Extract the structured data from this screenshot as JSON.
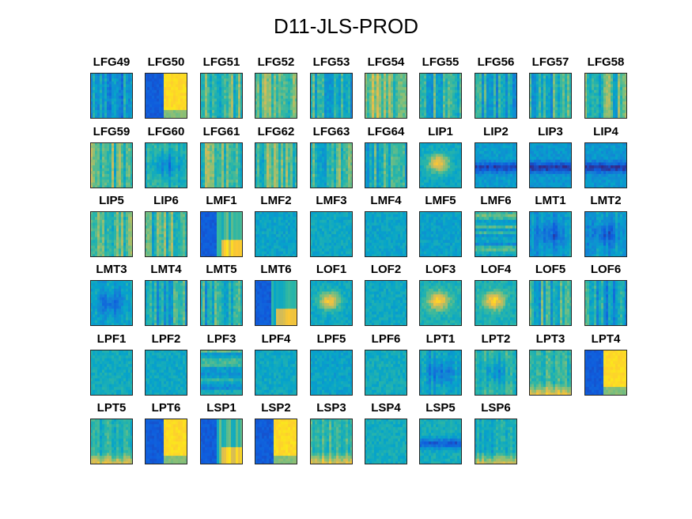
{
  "title": "D11-JLS-PROD",
  "chart_data": {
    "type": "heatmap",
    "title": "D11-JLS-PROD",
    "layout": "small multiples grid, 10 columns x 6 rows",
    "colormap": "parula",
    "colors": [
      "#352a87",
      "#0f5cdd",
      "#1481d6",
      "#06a4ca",
      "#2eb7a4",
      "#87bf77",
      "#d1bb59",
      "#fec832",
      "#f9fb0e"
    ],
    "panels": [
      {
        "label": "LFG49",
        "pattern": "vstripes",
        "level": 0.35
      },
      {
        "label": "LFG50",
        "pattern": "yellow-right",
        "level": 0.85
      },
      {
        "label": "LFG51",
        "pattern": "vstripes",
        "level": 0.5
      },
      {
        "label": "LFG52",
        "pattern": "vstripes",
        "level": 0.55
      },
      {
        "label": "LFG53",
        "pattern": "vstripes",
        "level": 0.42
      },
      {
        "label": "LFG54",
        "pattern": "vstripes",
        "level": 0.6
      },
      {
        "label": "LFG55",
        "pattern": "vstripes",
        "level": 0.45
      },
      {
        "label": "LFG56",
        "pattern": "vstripes",
        "level": 0.4
      },
      {
        "label": "LFG57",
        "pattern": "vstripes",
        "level": 0.45
      },
      {
        "label": "LFG58",
        "pattern": "vstripes",
        "level": 0.5
      },
      {
        "label": "LFG59",
        "pattern": "vstripes",
        "level": 0.55
      },
      {
        "label": "LFG60",
        "pattern": "patchy",
        "level": 0.45
      },
      {
        "label": "LFG61",
        "pattern": "vstripes",
        "level": 0.55
      },
      {
        "label": "LFG62",
        "pattern": "vstripes",
        "level": 0.55
      },
      {
        "label": "LFG63",
        "pattern": "vstripes",
        "level": 0.5
      },
      {
        "label": "LFG64",
        "pattern": "vstripes",
        "level": 0.45
      },
      {
        "label": "LIP1",
        "pattern": "blob",
        "level": 0.45
      },
      {
        "label": "LIP2",
        "pattern": "dark-band",
        "level": 0.3
      },
      {
        "label": "LIP3",
        "pattern": "dark-band",
        "level": 0.28
      },
      {
        "label": "LIP4",
        "pattern": "dark-band",
        "level": 0.28
      },
      {
        "label": "LIP5",
        "pattern": "vstripes",
        "level": 0.5
      },
      {
        "label": "LIP6",
        "pattern": "vstripes",
        "level": 0.5
      },
      {
        "label": "LMF1",
        "pattern": "dark-left",
        "level": 0.4
      },
      {
        "label": "LMF2",
        "pattern": "uniform",
        "level": 0.38
      },
      {
        "label": "LMF3",
        "pattern": "uniform",
        "level": 0.4
      },
      {
        "label": "LMF4",
        "pattern": "uniform",
        "level": 0.38
      },
      {
        "label": "LMF5",
        "pattern": "uniform",
        "level": 0.37
      },
      {
        "label": "LMF6",
        "pattern": "hstripes",
        "level": 0.45
      },
      {
        "label": "LMT1",
        "pattern": "patchy",
        "level": 0.35
      },
      {
        "label": "LMT2",
        "pattern": "patchy",
        "level": 0.35
      },
      {
        "label": "LMT3",
        "pattern": "patchy",
        "level": 0.4
      },
      {
        "label": "LMT4",
        "pattern": "vstripes",
        "level": 0.42
      },
      {
        "label": "LMT5",
        "pattern": "vstripes",
        "level": 0.45
      },
      {
        "label": "LMT6",
        "pattern": "dark-left",
        "level": 0.35
      },
      {
        "label": "LOF1",
        "pattern": "blob",
        "level": 0.45
      },
      {
        "label": "LOF2",
        "pattern": "uniform",
        "level": 0.4
      },
      {
        "label": "LOF3",
        "pattern": "blob",
        "level": 0.5
      },
      {
        "label": "LOF4",
        "pattern": "blob",
        "level": 0.5
      },
      {
        "label": "LOF5",
        "pattern": "vstripes",
        "level": 0.45
      },
      {
        "label": "LOF6",
        "pattern": "vstripes",
        "level": 0.4
      },
      {
        "label": "LPF1",
        "pattern": "uniform",
        "level": 0.42
      },
      {
        "label": "LPF2",
        "pattern": "uniform",
        "level": 0.4
      },
      {
        "label": "LPF3",
        "pattern": "hstripes",
        "level": 0.42
      },
      {
        "label": "LPF4",
        "pattern": "uniform",
        "level": 0.4
      },
      {
        "label": "LPF5",
        "pattern": "uniform",
        "level": 0.38
      },
      {
        "label": "LPF6",
        "pattern": "uniform",
        "level": 0.42
      },
      {
        "label": "LPT1",
        "pattern": "patchy",
        "level": 0.38
      },
      {
        "label": "LPT2",
        "pattern": "patchy",
        "level": 0.5
      },
      {
        "label": "LPT3",
        "pattern": "bottom-bright",
        "level": 0.5
      },
      {
        "label": "LPT4",
        "pattern": "yellow-right",
        "level": 0.55
      },
      {
        "label": "LPT5",
        "pattern": "bottom-bright",
        "level": 0.45
      },
      {
        "label": "LPT6",
        "pattern": "yellow-right",
        "level": 0.5
      },
      {
        "label": "LSP1",
        "pattern": "dark-left",
        "level": 0.4
      },
      {
        "label": "LSP2",
        "pattern": "yellow-right",
        "level": 0.6
      },
      {
        "label": "LSP3",
        "pattern": "bottom-bright",
        "level": 0.5
      },
      {
        "label": "LSP4",
        "pattern": "uniform",
        "level": 0.42
      },
      {
        "label": "LSP5",
        "pattern": "dark-band",
        "level": 0.38
      },
      {
        "label": "LSP6",
        "pattern": "bottom-bright",
        "level": 0.42
      }
    ]
  }
}
